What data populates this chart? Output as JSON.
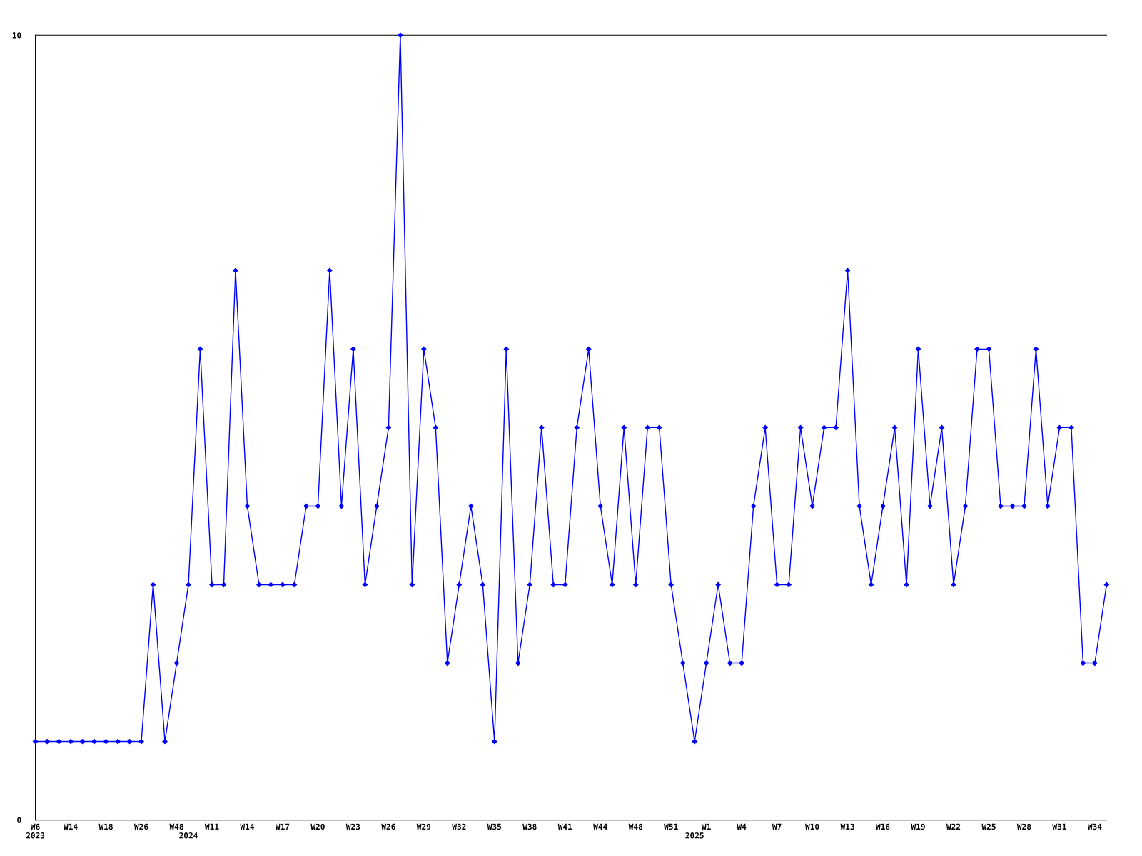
{
  "chart_data": {
    "type": "line",
    "categories": [
      "W6\n2023",
      null,
      null,
      "W14",
      null,
      null,
      "W18",
      null,
      null,
      "W26",
      null,
      null,
      "W48",
      "\n2024",
      null,
      "W11",
      null,
      null,
      "W14",
      null,
      null,
      "W17",
      null,
      null,
      "W20",
      null,
      null,
      "W23",
      null,
      null,
      "W26",
      null,
      null,
      "W29",
      null,
      null,
      "W32",
      null,
      null,
      "W35",
      null,
      null,
      "W38",
      null,
      null,
      "W41",
      null,
      null,
      "W44",
      null,
      null,
      "W48",
      null,
      null,
      "W51",
      null,
      "\n2025",
      "W1",
      null,
      null,
      "W4",
      null,
      null,
      "W7",
      null,
      null,
      "W10",
      null,
      null,
      "W13",
      null,
      null,
      "W16",
      null,
      null,
      "W19",
      null,
      null,
      "W22",
      null,
      null,
      "W25",
      null,
      null,
      "W28",
      null,
      null,
      "W31",
      null,
      null,
      "W34",
      null
    ],
    "series": [
      {
        "color": "#0000ff",
        "values": [
          1,
          1,
          1,
          1,
          1,
          1,
          1,
          1,
          1,
          1,
          3,
          1,
          2,
          3,
          6,
          3,
          3,
          7,
          4,
          3,
          3,
          3,
          3,
          4,
          4,
          7,
          4,
          6,
          3,
          4,
          5,
          10,
          3,
          6,
          5,
          2,
          3,
          4,
          3,
          1,
          6,
          2,
          3,
          5,
          3,
          3,
          5,
          6,
          4,
          3,
          5,
          3,
          5,
          5,
          3,
          2,
          1,
          2,
          3,
          2,
          2,
          4,
          5,
          3,
          3,
          5,
          4,
          5,
          5,
          7,
          4,
          3,
          4,
          5,
          3,
          6,
          4,
          5,
          3,
          4,
          6,
          6,
          4,
          4,
          4,
          6,
          4,
          5,
          5,
          2,
          2,
          3
        ]
      }
    ],
    "ylim": [
      0,
      10
    ],
    "yticks": [
      0,
      10
    ],
    "grid": false,
    "marker": "diamond",
    "line_style": "solid",
    "legend": false
  }
}
